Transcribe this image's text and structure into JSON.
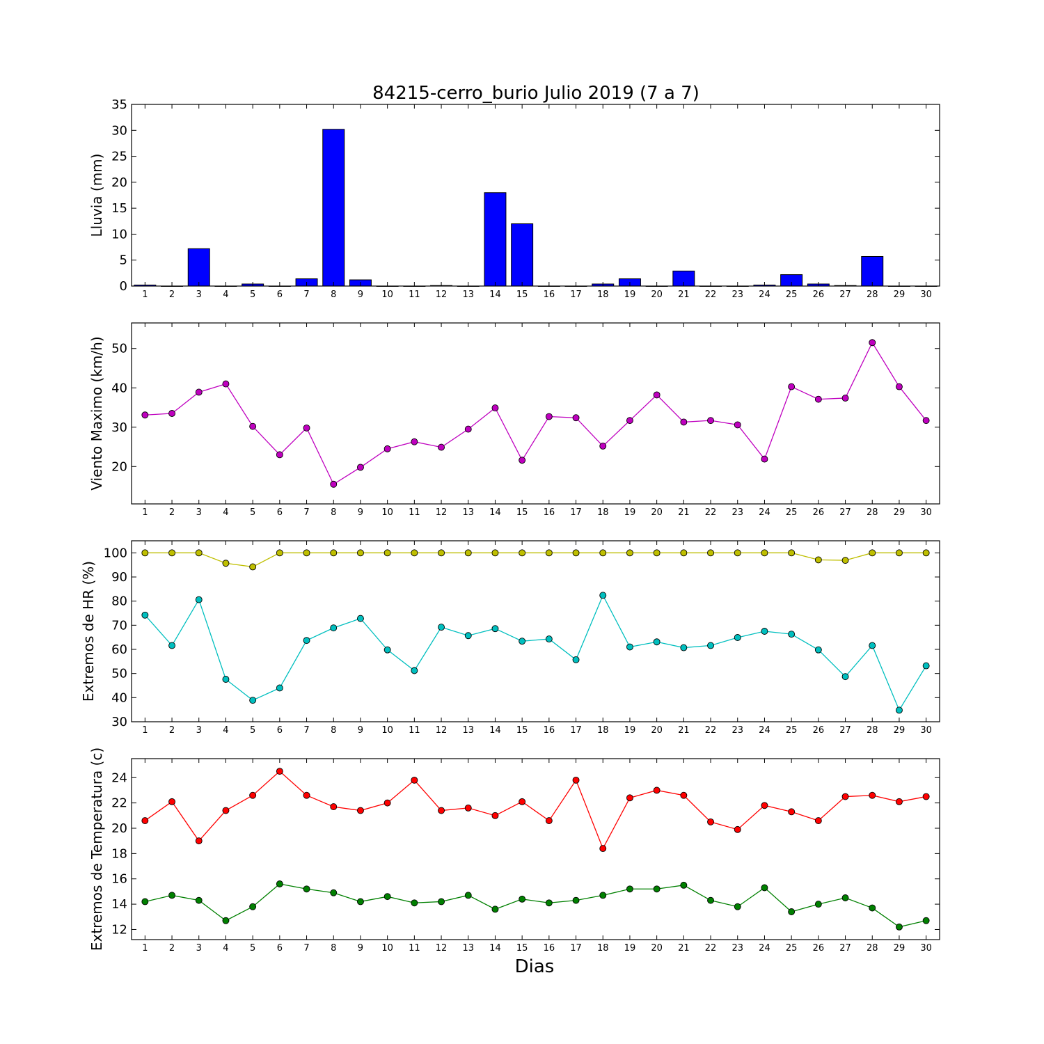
{
  "chart_data": {
    "title": "84215-cerro_burio Julio 2019  (7 a 7)",
    "xlabel": "Dias",
    "days": [
      1,
      2,
      3,
      4,
      5,
      6,
      7,
      8,
      9,
      10,
      11,
      12,
      13,
      14,
      15,
      16,
      17,
      18,
      19,
      20,
      21,
      22,
      23,
      24,
      25,
      26,
      27,
      28,
      29,
      30
    ],
    "panels": [
      {
        "type": "bar",
        "ylabel": "Lluvia (mm)",
        "ylim": [
          0,
          35
        ],
        "yticks": [
          0,
          5,
          10,
          15,
          20,
          25,
          30,
          35
        ],
        "grid": false,
        "series": [
          {
            "color": "#0000ff",
            "values": [
              0.2,
              0,
              7.2,
              0,
              0.4,
              0,
              1.4,
              30.2,
              1.2,
              0,
              0,
              0.1,
              0,
              18,
              12,
              0,
              0,
              0.4,
              1.4,
              0,
              2.9,
              0,
              0,
              0.2,
              2.2,
              0.4,
              0.1,
              5.7,
              0,
              0
            ]
          }
        ]
      },
      {
        "type": "line",
        "ylabel": "Viento Maximo (km/h)",
        "ylim": [
          10.5,
          56.5
        ],
        "yticks": [
          20,
          30,
          40,
          50
        ],
        "grid": false,
        "series": [
          {
            "color": "#bf00bf",
            "values": [
              33.1,
              33.5,
              38.9,
              41,
              30.2,
              23,
              29.8,
              15.5,
              19.8,
              24.5,
              26.3,
              24.9,
              29.5,
              34.9,
              21.6,
              32.7,
              32.4,
              25.2,
              31.7,
              38.2,
              31.3,
              31.7,
              30.6,
              21.9,
              40.3,
              37.1,
              37.4,
              51.5,
              40.3,
              31.7
            ]
          }
        ]
      },
      {
        "type": "line",
        "ylabel": "Extremos de HR (%)",
        "ylim": [
          30,
          105
        ],
        "yticks": [
          30,
          40,
          50,
          60,
          70,
          80,
          90,
          100
        ],
        "grid": false,
        "series": [
          {
            "color": "#bfbf00",
            "values": [
              100,
              100,
              100,
              95.7,
              94.2,
              100,
              100,
              100,
              100,
              100,
              100,
              100,
              100,
              100,
              100,
              100,
              100,
              100,
              100,
              100,
              100,
              100,
              100,
              100,
              100,
              97.1,
              96.9,
              100,
              100,
              100
            ]
          },
          {
            "color": "#00bfbf",
            "values": [
              74.2,
              61.6,
              80.6,
              47.6,
              38.9,
              44,
              63.7,
              68.9,
              72.8,
              59.8,
              51.2,
              69.2,
              65.7,
              68.6,
              63.4,
              64.3,
              55.7,
              82.4,
              61,
              63.1,
              60.7,
              61.6,
              64.9,
              67.5,
              66.3,
              59.8,
              48.7,
              61.6,
              34.8,
              53.2
            ]
          }
        ]
      },
      {
        "type": "line",
        "ylabel": "Extremos de Temperatura (c)",
        "ylim": [
          11.2,
          25.5
        ],
        "yticks": [
          12,
          14,
          16,
          18,
          20,
          22,
          24
        ],
        "grid": false,
        "series": [
          {
            "color": "#ff0000",
            "values": [
              20.6,
              22.1,
              19,
              21.4,
              22.6,
              24.5,
              22.6,
              21.7,
              21.4,
              22,
              23.8,
              21.4,
              21.6,
              21,
              22.1,
              20.6,
              23.8,
              18.4,
              22.4,
              23,
              22.6,
              20.5,
              19.9,
              21.8,
              21.3,
              20.6,
              22.5,
              22.6,
              22.1,
              22.5
            ]
          },
          {
            "color": "#008000",
            "values": [
              14.2,
              14.7,
              14.3,
              12.7,
              13.8,
              15.6,
              15.2,
              14.9,
              14.2,
              14.6,
              14.1,
              14.2,
              14.7,
              13.6,
              14.4,
              14.1,
              14.3,
              14.7,
              15.2,
              15.2,
              15.5,
              14.3,
              13.8,
              15.3,
              13.4,
              14,
              14.5,
              13.7,
              12.2,
              12.7
            ]
          }
        ]
      }
    ]
  }
}
